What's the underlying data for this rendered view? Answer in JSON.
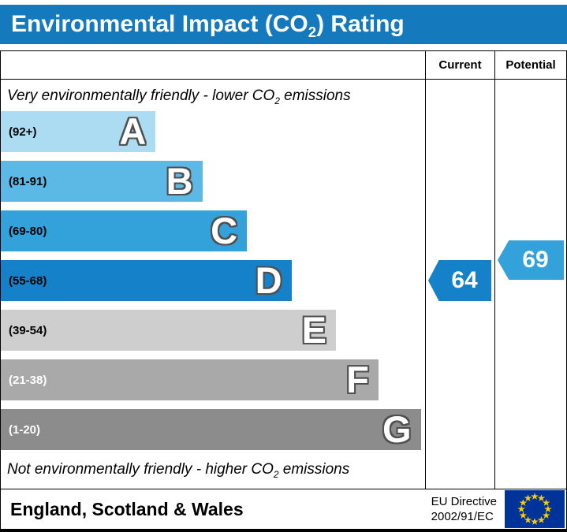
{
  "title": {
    "pre": "Environmental Impact (CO",
    "sub": "2",
    "post": ") Rating"
  },
  "colors": {
    "title_bg": "#1579bd"
  },
  "columns": {
    "current": "Current",
    "potential": "Potential"
  },
  "top_note": {
    "pre": "Very environmentally friendly - lower CO",
    "sub": "2",
    "post": " emissions"
  },
  "bottom_note": {
    "pre": "Not environmentally friendly - higher CO",
    "sub": "2",
    "post": " emissions"
  },
  "bands": [
    {
      "letter": "A",
      "range_label": "(92+)",
      "color": "#abdcf2",
      "label_color": "#000000",
      "width_pct": 36.5
    },
    {
      "letter": "B",
      "range_label": "(81-91)",
      "color": "#5cb9e6",
      "label_color": "#000000",
      "width_pct": 47.5
    },
    {
      "letter": "C",
      "range_label": "(69-80)",
      "color": "#33a1da",
      "label_color": "#000000",
      "width_pct": 58
    },
    {
      "letter": "D",
      "range_label": "(55-68)",
      "color": "#1581c8",
      "label_color": "#000000",
      "width_pct": 68.5
    },
    {
      "letter": "E",
      "range_label": "(39-54)",
      "color": "#cecece",
      "label_color": "#000000",
      "width_pct": 79
    },
    {
      "letter": "F",
      "range_label": "(21-38)",
      "color": "#a9a9a9",
      "label_color": "#ffffff",
      "width_pct": 89
    },
    {
      "letter": "G",
      "range_label": "(1-20)",
      "color": "#8c8c8c",
      "label_color": "#ffffff",
      "width_pct": 99
    }
  ],
  "current": {
    "value": "64",
    "color": "#1581c8"
  },
  "potential": {
    "value": "69",
    "color": "#33a1da"
  },
  "footer": {
    "region": "England, Scotland & Wales",
    "directive": [
      "EU Directive",
      "2002/91/EC"
    ],
    "flag_icon": "eu-flag"
  },
  "chart_data": {
    "type": "bar",
    "orientation": "horizontal",
    "title": "Environmental Impact (CO2) Rating",
    "categories": [
      "A",
      "B",
      "C",
      "D",
      "E",
      "F",
      "G"
    ],
    "band_ranges": [
      "92+",
      "81-91",
      "69-80",
      "55-68",
      "39-54",
      "21-38",
      "1-20"
    ],
    "bar_lengths_pct": [
      36.5,
      47.5,
      58,
      68.5,
      79,
      89,
      99
    ],
    "current": 64,
    "potential": 69,
    "current_band": "D",
    "potential_band": "C",
    "notes": [
      "Very environmentally friendly - lower CO2 emissions",
      "Not environmentally friendly - higher CO2 emissions"
    ],
    "region": "England, Scotland & Wales",
    "directive": "EU Directive 2002/91/EC",
    "legend_position": "none",
    "grid": false
  }
}
